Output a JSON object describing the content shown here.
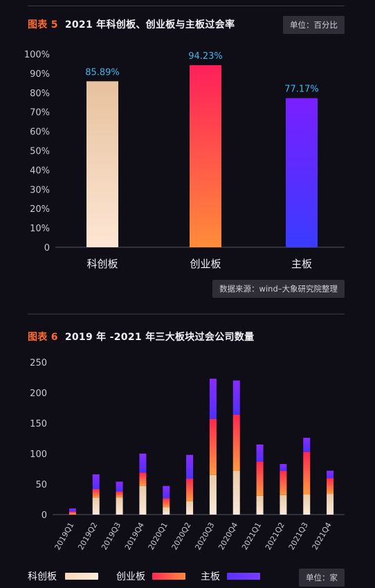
{
  "figure5": {
    "label": "图表 5",
    "title": "2021 年科创板、创业板与主板过会率",
    "unit": "单位：百分比",
    "source": "数据来源：wind–大象研究院整理"
  },
  "figure6": {
    "label": "图表 6",
    "title": "2019 年 -2021 年三大板块过会公司数量",
    "unit": "单位：家"
  },
  "legend": [
    {
      "name": "科创板",
      "color": "#f7cfa6"
    },
    {
      "name": "创业板",
      "color": "#ff3b4e"
    },
    {
      "name": "主板",
      "color": "#5c2bff"
    }
  ],
  "colors": {
    "label_blue": "#3fb6f0",
    "orange_accent": "#ff6b2c"
  },
  "chart_data": [
    {
      "type": "bar",
      "categories": [
        "科创板",
        "创业板",
        "主板"
      ],
      "values": [
        85.89,
        94.23,
        77.17
      ],
      "data_labels": [
        "85.89%",
        "94.23%",
        "77.17%"
      ],
      "yticks": [
        "0",
        "10%",
        "20%",
        "30%",
        "40%",
        "50%",
        "60%",
        "70%",
        "80%",
        "90%",
        "100%"
      ],
      "ylim": [
        0,
        100
      ],
      "grid": false
    },
    {
      "type": "bar",
      "stacked": true,
      "categories": [
        "2019Q1",
        "2019Q2",
        "2019Q3",
        "2019Q4",
        "2020Q1",
        "2020Q2",
        "2020Q3",
        "2020Q4",
        "2021Q1",
        "2021Q2",
        "2021Q3",
        "2021Q4"
      ],
      "series": [
        {
          "name": "科创板",
          "values": [
            0,
            28,
            28,
            47,
            12,
            22,
            65,
            72,
            31,
            32,
            33,
            34
          ]
        },
        {
          "name": "创业板",
          "values": [
            5,
            14,
            10,
            22,
            15,
            37,
            92,
            92,
            56,
            40,
            70,
            26
          ]
        },
        {
          "name": "主板",
          "values": [
            5,
            24,
            16,
            31,
            20,
            39,
            66,
            56,
            28,
            11,
            23,
            12
          ]
        }
      ],
      "yticks": [
        "0",
        "50",
        "100",
        "150",
        "200",
        "250"
      ],
      "ylim": [
        0,
        250
      ],
      "grid": false
    }
  ]
}
